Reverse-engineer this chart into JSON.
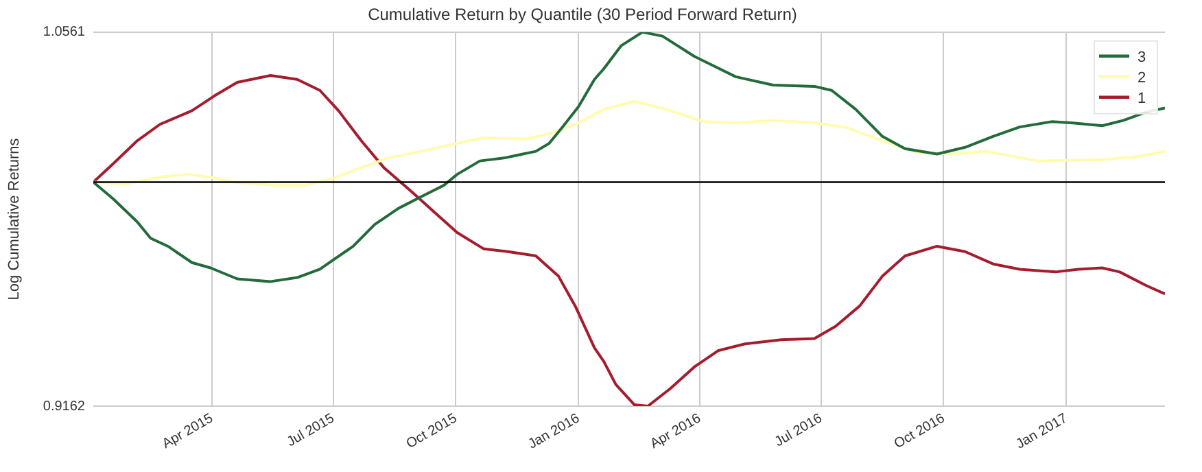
{
  "chart_data": {
    "type": "line",
    "title": "Cumulative Return by Quantile (30 Period Forward Return)",
    "ylabel": "Log Cumulative Returns",
    "ylim": [
      0.9162,
      1.0561
    ],
    "yticks": [
      0.9162,
      1.0561
    ],
    "xlim": [
      "2015-01-02",
      "2017-03-16"
    ],
    "xticks": [
      {
        "value": "2015-04-01",
        "label": "Apr 2015"
      },
      {
        "value": "2015-07-01",
        "label": "Jul 2015"
      },
      {
        "value": "2015-10-01",
        "label": "Oct 2015"
      },
      {
        "value": "2016-01-01",
        "label": "Jan 2016"
      },
      {
        "value": "2016-04-01",
        "label": "Apr 2016"
      },
      {
        "value": "2016-07-01",
        "label": "Jul 2016"
      },
      {
        "value": "2016-10-01",
        "label": "Oct 2016"
      },
      {
        "value": "2017-01-01",
        "label": "Jan 2017"
      }
    ],
    "grid": true,
    "legend": "top right",
    "marker": "none",
    "line_style": "solid",
    "ref_lines": [
      {
        "axis": "y",
        "value": 1.0,
        "color": "#000000"
      }
    ],
    "series": [
      {
        "name": "3",
        "color": "#236b3b",
        "x": [
          "2015-01-02",
          "2015-01-17",
          "2015-02-04",
          "2015-02-14",
          "2015-02-27",
          "2015-03-17",
          "2015-03-31",
          "2015-04-20",
          "2015-05-15",
          "2015-06-04",
          "2015-06-21",
          "2015-07-01",
          "2015-07-16",
          "2015-08-01",
          "2015-08-19",
          "2015-09-08",
          "2015-09-22",
          "2015-10-02",
          "2015-10-19",
          "2015-11-06",
          "2015-11-30",
          "2015-12-10",
          "2015-12-20",
          "2016-01-01",
          "2016-01-13",
          "2016-01-20",
          "2016-02-02",
          "2016-02-18",
          "2016-03-04",
          "2016-03-28",
          "2016-04-28",
          "2016-05-26",
          "2016-06-26",
          "2016-07-09",
          "2016-07-27",
          "2016-08-16",
          "2016-09-02",
          "2016-09-26",
          "2016-10-17",
          "2016-11-07",
          "2016-11-27",
          "2016-12-21",
          "2017-01-06",
          "2017-01-28",
          "2017-02-13",
          "2017-03-02",
          "2017-03-16"
        ],
        "values": [
          1.0,
          0.9937,
          0.9851,
          0.979,
          0.976,
          0.9699,
          0.9679,
          0.9638,
          0.9628,
          0.9643,
          0.9674,
          0.9709,
          0.976,
          0.9841,
          0.9902,
          0.9953,
          0.9988,
          1.0029,
          1.0079,
          1.009,
          1.0115,
          1.0145,
          1.0206,
          1.0282,
          1.0384,
          1.0424,
          1.051,
          1.0561,
          1.0546,
          1.047,
          1.0394,
          1.0363,
          1.0358,
          1.0343,
          1.0272,
          1.0171,
          1.0125,
          1.0105,
          1.013,
          1.0171,
          1.0206,
          1.0226,
          1.0221,
          1.0211,
          1.0231,
          1.0262,
          1.0277
        ]
      },
      {
        "name": "2",
        "color": "#fffcb0",
        "x": [
          "2015-01-02",
          "2015-01-27",
          "2015-02-21",
          "2015-03-14",
          "2015-03-30",
          "2015-04-20",
          "2015-05-18",
          "2015-06-10",
          "2015-07-01",
          "2015-07-22",
          "2015-08-11",
          "2015-09-05",
          "2015-10-02",
          "2015-10-22",
          "2015-11-22",
          "2015-12-10",
          "2015-12-30",
          "2016-01-20",
          "2016-02-12",
          "2016-03-07",
          "2016-04-04",
          "2016-04-28",
          "2016-05-26",
          "2016-06-26",
          "2016-07-19",
          "2016-08-16",
          "2016-09-12",
          "2016-10-10",
          "2016-11-02",
          "2016-12-11",
          "2017-01-28",
          "2017-02-23",
          "2017-03-16"
        ],
        "values": [
          1.0,
          0.9993,
          1.0019,
          1.0029,
          1.0019,
          0.9998,
          0.9988,
          0.9988,
          1.0014,
          1.0054,
          1.009,
          1.0115,
          1.0145,
          1.0166,
          1.0161,
          1.0181,
          1.0216,
          1.0272,
          1.0302,
          1.0272,
          1.0226,
          1.0221,
          1.0231,
          1.0221,
          1.0206,
          1.0155,
          1.011,
          1.0105,
          1.0115,
          1.0079,
          1.0084,
          1.0095,
          1.0115
        ]
      },
      {
        "name": "1",
        "color": "#a51c2d",
        "x": [
          "2015-01-02",
          "2015-01-17",
          "2015-02-04",
          "2015-02-21",
          "2015-03-17",
          "2015-04-03",
          "2015-04-20",
          "2015-05-15",
          "2015-06-04",
          "2015-06-21",
          "2015-07-05",
          "2015-07-22",
          "2015-08-08",
          "2015-08-29",
          "2015-09-15",
          "2015-10-02",
          "2015-10-22",
          "2015-11-09",
          "2015-11-30",
          "2015-12-17",
          "2015-12-30",
          "2016-01-13",
          "2016-01-20",
          "2016-01-29",
          "2016-02-12",
          "2016-02-22",
          "2016-03-10",
          "2016-03-28",
          "2016-04-15",
          "2016-05-05",
          "2016-06-01",
          "2016-06-26",
          "2016-07-12",
          "2016-07-30",
          "2016-08-16",
          "2016-09-02",
          "2016-09-26",
          "2016-10-17",
          "2016-11-07",
          "2016-11-27",
          "2016-12-24",
          "2017-01-10",
          "2017-01-28",
          "2017-02-10",
          "2017-03-02",
          "2017-03-16"
        ],
        "values": [
          1.0,
          1.0069,
          1.0155,
          1.0216,
          1.0267,
          1.0323,
          1.0373,
          1.0399,
          1.0384,
          1.0343,
          1.0267,
          1.0155,
          1.0054,
          0.9963,
          0.9887,
          0.9811,
          0.975,
          0.974,
          0.9724,
          0.9648,
          0.9532,
          0.938,
          0.9329,
          0.9243,
          0.9167,
          0.9162,
          0.9228,
          0.9309,
          0.937,
          0.9395,
          0.941,
          0.9415,
          0.9461,
          0.9537,
          0.9648,
          0.9724,
          0.976,
          0.974,
          0.9694,
          0.9674,
          0.9664,
          0.9674,
          0.9679,
          0.9664,
          0.9613,
          0.9582
        ]
      }
    ]
  }
}
